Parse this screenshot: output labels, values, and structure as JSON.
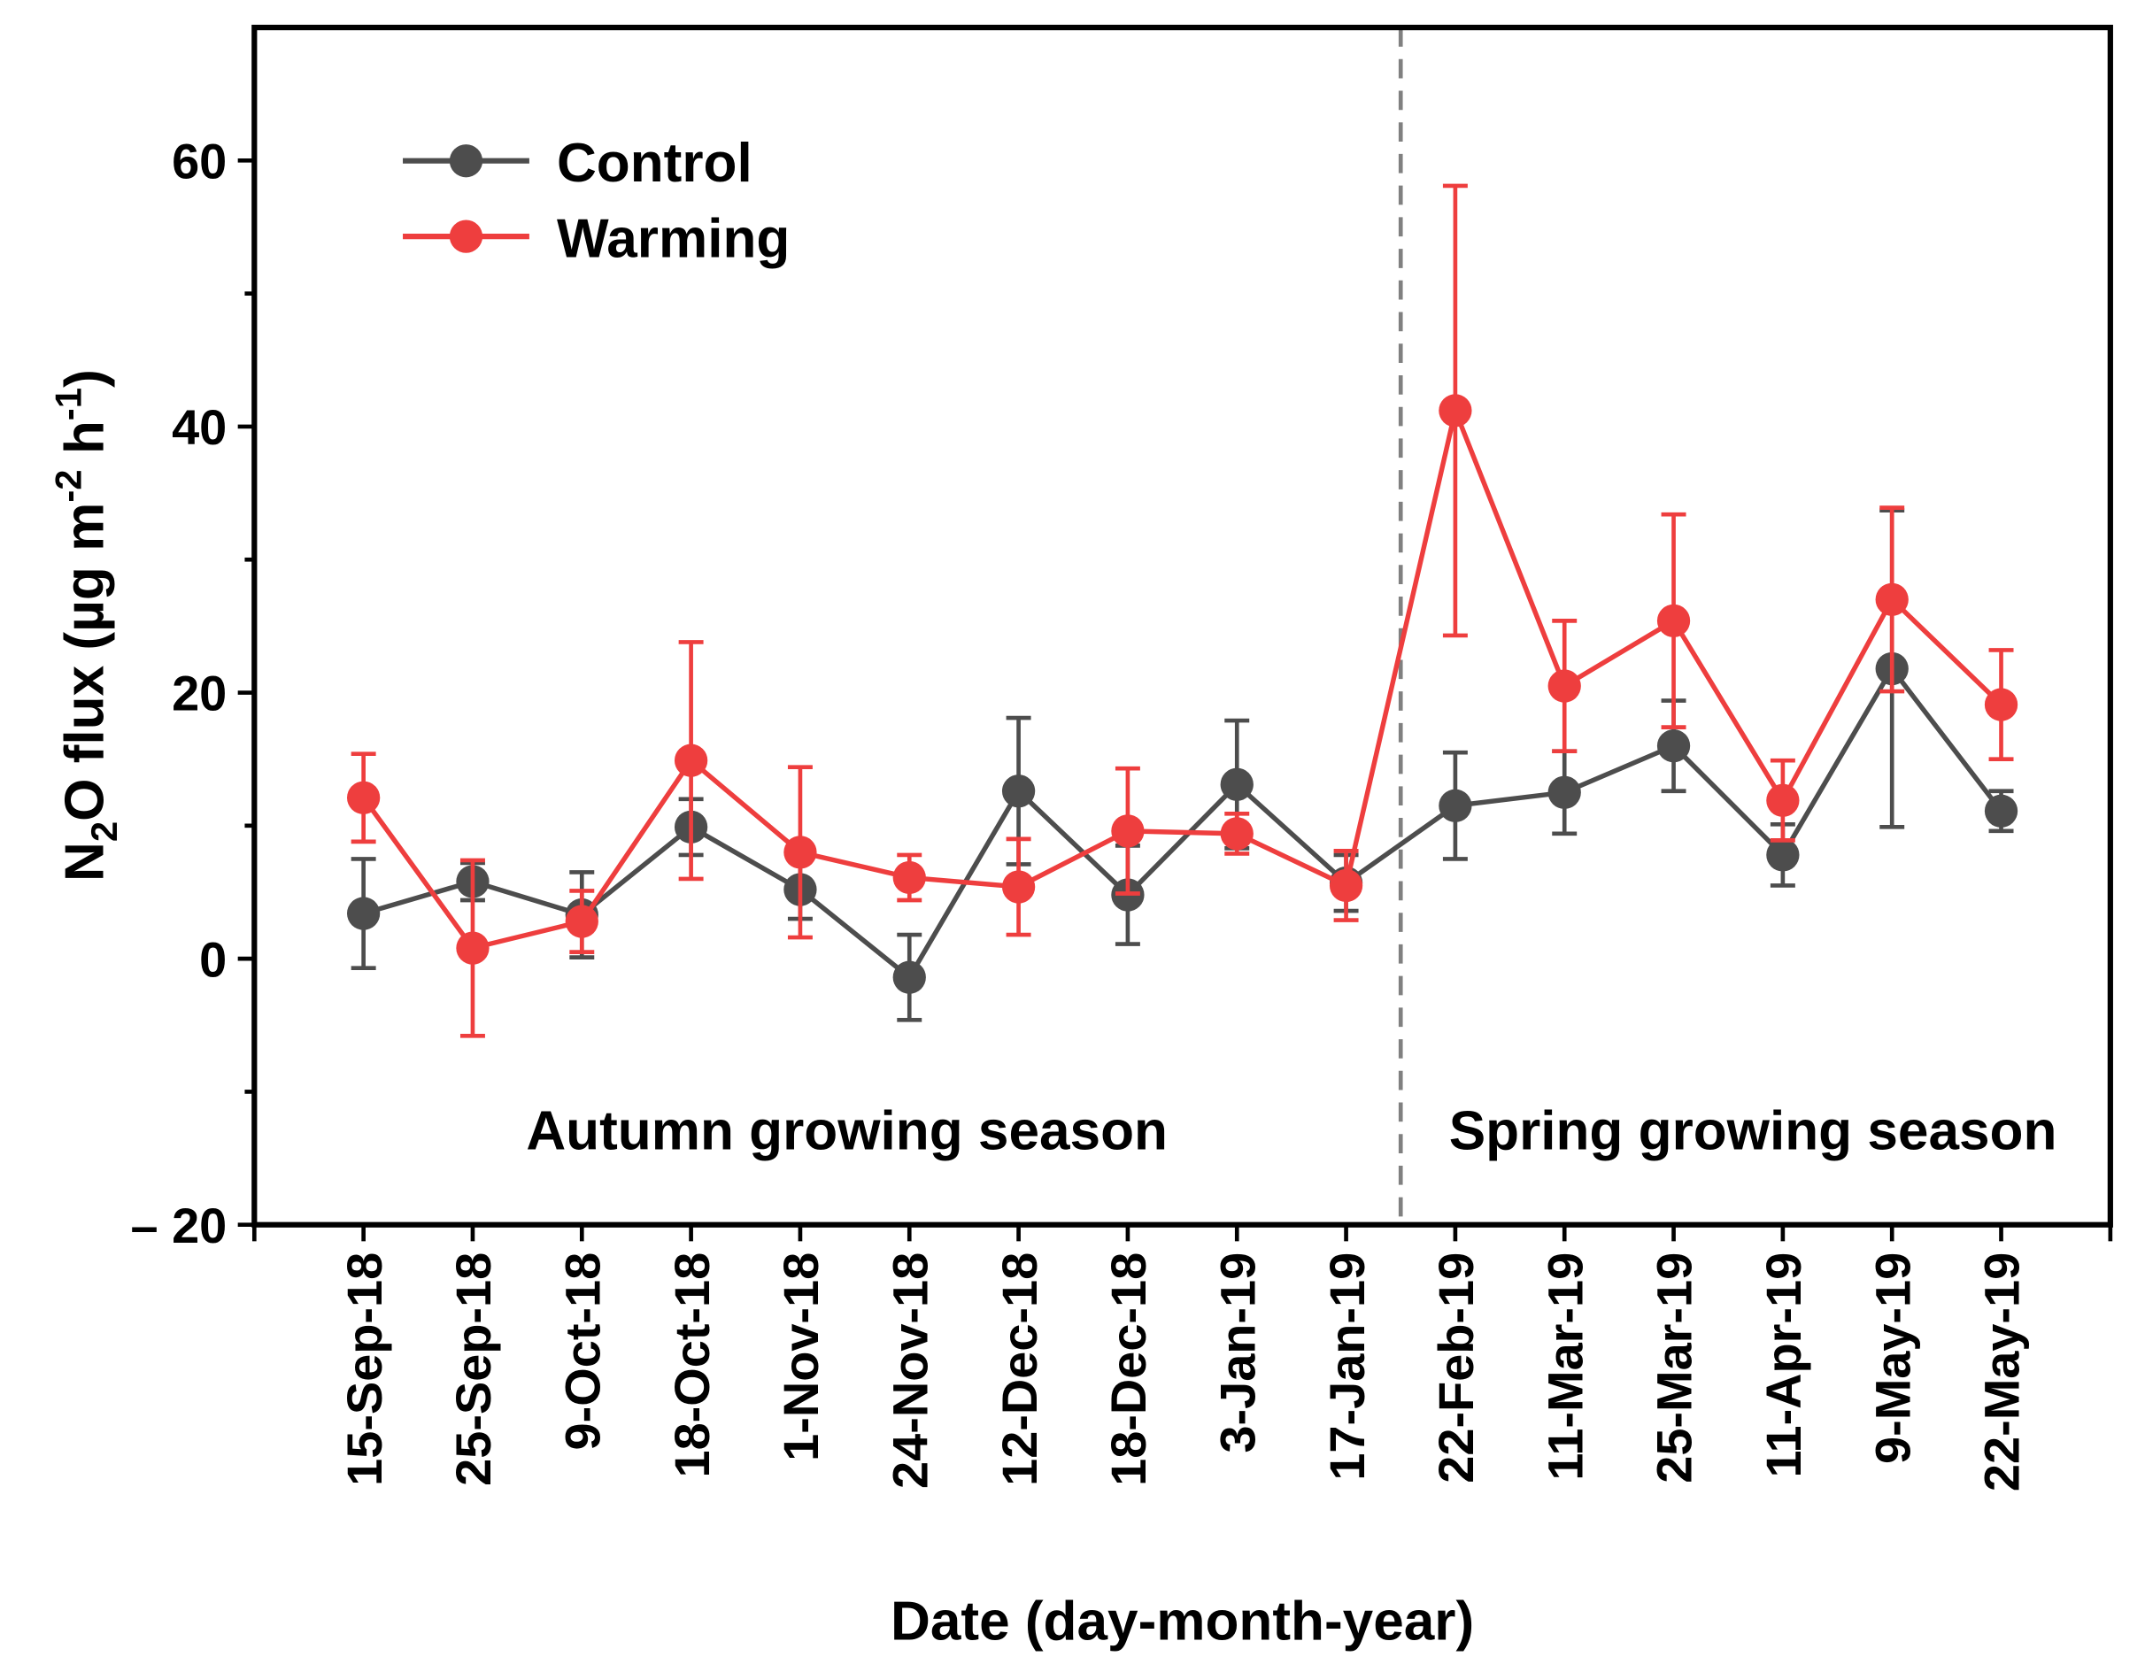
{
  "chart_data": {
    "type": "line",
    "title": "",
    "xlabel": "Date (day-month-year)",
    "ylabel_parts": {
      "a": "N",
      "sub": "2",
      "b": "O flux (µg m",
      "sup1": "-2",
      "c": " h",
      "sup2": "-1",
      "d": ")"
    },
    "ylim": [
      -20,
      70
    ],
    "yticks": [
      -20,
      0,
      20,
      40,
      60
    ],
    "ytick_labels": [
      "– 20",
      "0",
      "20",
      "40",
      "60"
    ],
    "categories": [
      "15-Sep-18",
      "25-Sep-18",
      "9-Oct-18",
      "18-Oct-18",
      "1-Nov-18",
      "24-Nov-18",
      "12-Dec-18",
      "18-Dec-18",
      "3-Jan-19",
      "17-Jan-19",
      "22-Feb-19",
      "11-Mar-19",
      "25-Mar-19",
      "11-Apr-19",
      "9-May-19",
      "22-May-19"
    ],
    "series": [
      {
        "name": "Control",
        "color": "#4d4d4d",
        "values": [
          3.4,
          5.8,
          3.3,
          9.9,
          5.2,
          -1.4,
          12.6,
          4.8,
          13.1,
          5.7,
          11.5,
          12.5,
          16.0,
          7.8,
          21.8,
          11.1
        ],
        "errors": [
          4.1,
          1.4,
          3.2,
          2.1,
          2.2,
          3.2,
          5.5,
          3.7,
          4.8,
          2.1,
          4.0,
          3.1,
          3.4,
          2.3,
          11.9,
          1.5
        ]
      },
      {
        "name": "Warming",
        "color": "#ee3e3e",
        "values": [
          12.1,
          0.8,
          2.8,
          14.9,
          8.0,
          6.1,
          5.4,
          9.6,
          9.4,
          5.5,
          41.2,
          20.5,
          25.4,
          11.9,
          27.0,
          19.1
        ],
        "errors": [
          3.3,
          6.6,
          2.3,
          8.9,
          6.4,
          1.7,
          3.6,
          4.7,
          1.5,
          2.6,
          16.9,
          4.9,
          8.0,
          3.0,
          6.9,
          4.1
        ]
      }
    ],
    "legend_placement": "top-left",
    "divider_after_index": 9,
    "annotations": [
      "Autumn growing season",
      "Spring growing season"
    ],
    "grid": false
  }
}
